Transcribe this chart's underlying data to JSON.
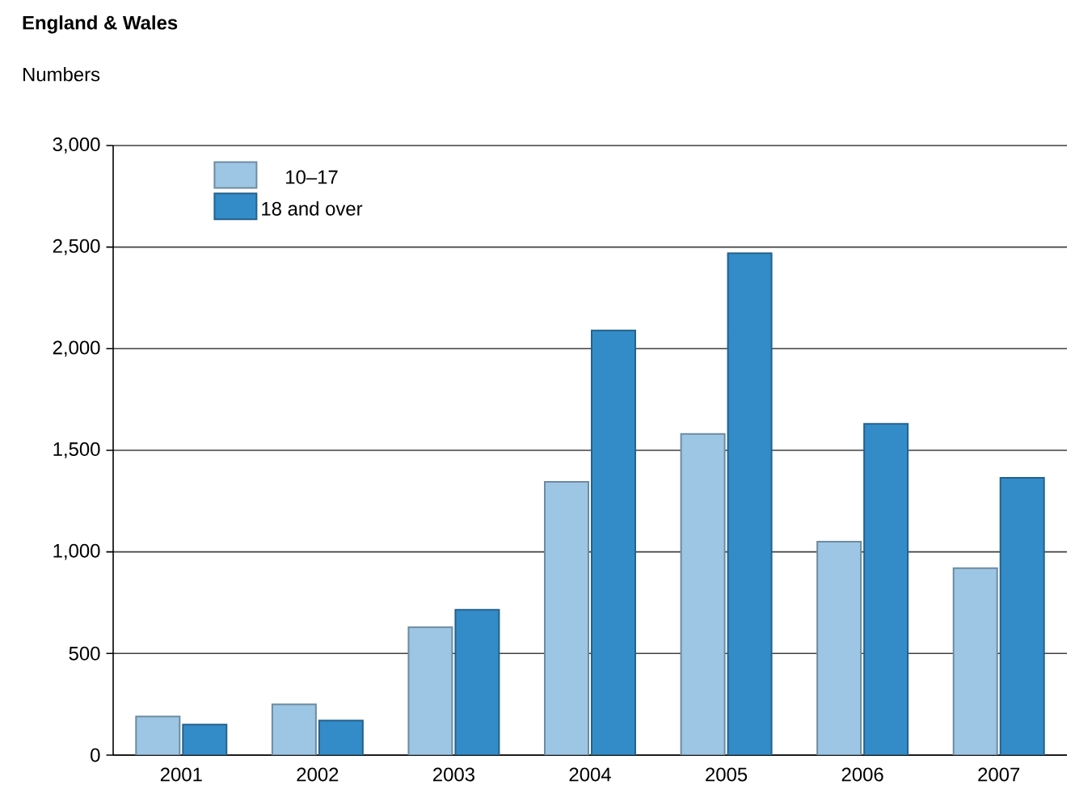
{
  "chart_data": {
    "type": "bar",
    "title": "England & Wales",
    "ylabel": "Numbers",
    "categories": [
      "2001",
      "2002",
      "2003",
      "2004",
      "2005",
      "2006",
      "2007"
    ],
    "series": [
      {
        "name": "10–17",
        "color": "#9dc6e4",
        "values": [
          190,
          250,
          630,
          1345,
          1580,
          1050,
          920
        ]
      },
      {
        "name": "18 and over",
        "color": "#338cc8",
        "values": [
          150,
          170,
          715,
          2090,
          2470,
          1630,
          1365
        ]
      }
    ],
    "ylim": [
      0,
      3000
    ],
    "yticks": [
      {
        "value": 0,
        "label": "0"
      },
      {
        "value": 500,
        "label": "500"
      },
      {
        "value": 1000,
        "label": "1,000"
      },
      {
        "value": 1500,
        "label": "1,500"
      },
      {
        "value": 2000,
        "label": "2,000"
      },
      {
        "value": 2500,
        "label": "2,500"
      },
      {
        "value": 3000,
        "label": "3,000"
      }
    ],
    "grid": "y",
    "legend": "top left"
  }
}
